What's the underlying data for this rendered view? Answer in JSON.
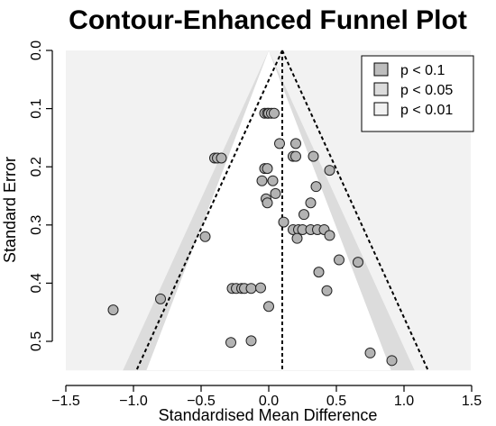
{
  "chart_data": {
    "type": "scatter",
    "title": "Contour-Enhanced Funnel Plot",
    "xlabel": "Standardised Mean Difference",
    "ylabel": "Standard Error",
    "xlim": [
      -1.5,
      1.5
    ],
    "ylim": [
      0.0,
      0.55
    ],
    "y_reversed": true,
    "x_ticks": [
      -1.5,
      -1.0,
      -0.5,
      0.0,
      0.5,
      1.0,
      1.5
    ],
    "x_tick_labels": [
      "−1.5",
      "−1.0",
      "−0.5",
      "0.0",
      "0.5",
      "1.0",
      "1.5"
    ],
    "y_ticks": [
      0.0,
      0.1,
      0.2,
      0.3,
      0.4,
      0.5
    ],
    "y_tick_labels": [
      "0.0",
      "0.1",
      "0.2",
      "0.3",
      "0.4",
      "0.5"
    ],
    "grid": false,
    "legend_position": "top-right",
    "contours": {
      "center": 0,
      "max_se": 0.55,
      "regions": [
        {
          "label": "p < 0.01",
          "z": 2.576,
          "color": "#f2f2f2"
        },
        {
          "label": "p < 0.05",
          "z": 1.96,
          "color": "#dcdcdc"
        },
        {
          "label": "p < 0.1",
          "z": 1.645,
          "color": "#bdbdbd"
        }
      ],
      "inner_color": "#ffffff"
    },
    "legend": [
      {
        "label": "p < 0.1",
        "color": "#bdbdbd"
      },
      {
        "label": "p < 0.05",
        "color": "#dcdcdc"
      },
      {
        "label": "p < 0.01",
        "color": "#f2f2f2"
      }
    ],
    "pooled_estimate": 0.1,
    "pooled_ci_z": 1.96,
    "point_color": "#b3b3b3",
    "points": [
      {
        "x": -0.03,
        "y": 0.108
      },
      {
        "x": -0.01,
        "y": 0.108
      },
      {
        "x": 0.0,
        "y": 0.108
      },
      {
        "x": 0.02,
        "y": 0.108
      },
      {
        "x": 0.04,
        "y": 0.108
      },
      {
        "x": 0.08,
        "y": 0.16
      },
      {
        "x": 0.2,
        "y": 0.16
      },
      {
        "x": 0.18,
        "y": 0.182
      },
      {
        "x": 0.2,
        "y": 0.182
      },
      {
        "x": 0.33,
        "y": 0.182
      },
      {
        "x": 0.45,
        "y": 0.206
      },
      {
        "x": -0.4,
        "y": 0.185
      },
      {
        "x": -0.38,
        "y": 0.185
      },
      {
        "x": -0.35,
        "y": 0.185
      },
      {
        "x": -0.03,
        "y": 0.203
      },
      {
        "x": -0.01,
        "y": 0.203
      },
      {
        "x": -0.05,
        "y": 0.224
      },
      {
        "x": 0.03,
        "y": 0.224
      },
      {
        "x": 0.05,
        "y": 0.246
      },
      {
        "x": -0.02,
        "y": 0.255
      },
      {
        "x": -0.01,
        "y": 0.262
      },
      {
        "x": 0.35,
        "y": 0.234
      },
      {
        "x": 0.31,
        "y": 0.262
      },
      {
        "x": 0.26,
        "y": 0.282
      },
      {
        "x": 0.11,
        "y": 0.295
      },
      {
        "x": 0.18,
        "y": 0.308
      },
      {
        "x": 0.22,
        "y": 0.308
      },
      {
        "x": 0.25,
        "y": 0.308
      },
      {
        "x": 0.31,
        "y": 0.308
      },
      {
        "x": 0.36,
        "y": 0.308
      },
      {
        "x": 0.41,
        "y": 0.308
      },
      {
        "x": 0.45,
        "y": 0.318
      },
      {
        "x": 0.21,
        "y": 0.323
      },
      {
        "x": -0.47,
        "y": 0.32
      },
      {
        "x": 0.52,
        "y": 0.36
      },
      {
        "x": 0.66,
        "y": 0.364
      },
      {
        "x": 0.37,
        "y": 0.381
      },
      {
        "x": -0.27,
        "y": 0.409
      },
      {
        "x": -0.24,
        "y": 0.409
      },
      {
        "x": -0.2,
        "y": 0.409
      },
      {
        "x": -0.18,
        "y": 0.409
      },
      {
        "x": -0.13,
        "y": 0.409
      },
      {
        "x": -0.06,
        "y": 0.408
      },
      {
        "x": 0.43,
        "y": 0.413
      },
      {
        "x": -0.8,
        "y": 0.427
      },
      {
        "x": -1.15,
        "y": 0.446
      },
      {
        "x": 0.0,
        "y": 0.44
      },
      {
        "x": -0.28,
        "y": 0.502
      },
      {
        "x": -0.13,
        "y": 0.499
      },
      {
        "x": 0.75,
        "y": 0.52
      },
      {
        "x": 0.91,
        "y": 0.533
      }
    ]
  }
}
